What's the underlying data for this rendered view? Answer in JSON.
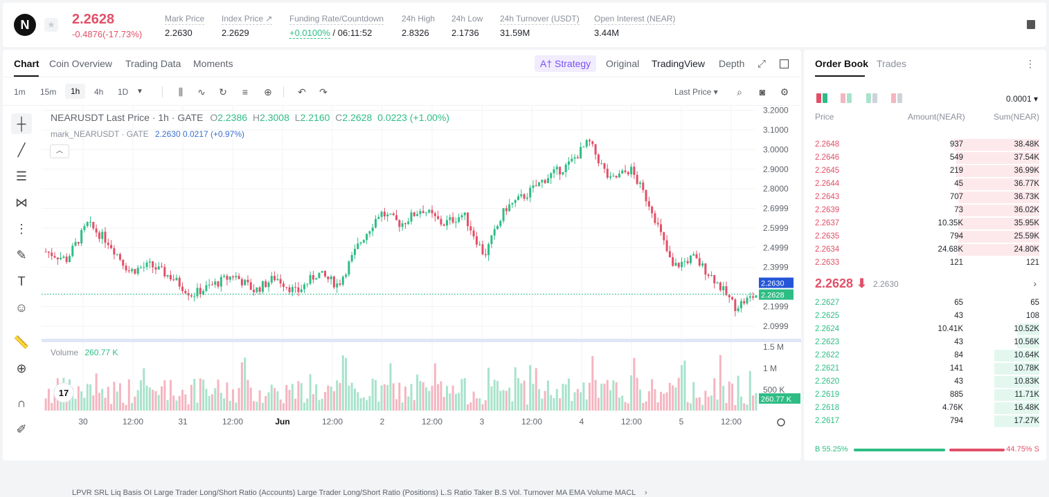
{
  "ticker": {
    "last_price": "2.2628",
    "change": "-0.4876(-17.73%)",
    "stats": [
      {
        "label": "Mark Price",
        "value": "2.2630"
      },
      {
        "label": "Index Price ↗",
        "value": "2.2629"
      },
      {
        "label": "Funding Rate/Countdown",
        "value": "+0.0100%",
        "value2": "/ 06:11:52"
      },
      {
        "label": "24h High",
        "value": "2.8326"
      },
      {
        "label": "24h Low",
        "value": "2.1736"
      },
      {
        "label": "24h Turnover (USDT)",
        "value": "31.59M"
      },
      {
        "label": "Open Interest (NEAR)",
        "value": "3.44M"
      }
    ]
  },
  "chart_tabs": {
    "chart": "Chart",
    "coin_overview": "Coin Overview",
    "trading_data": "Trading Data",
    "moments": "Moments",
    "strategy": "A† Strategy",
    "original": "Original",
    "tradingview": "TradingView",
    "depth": "Depth"
  },
  "toolbar": {
    "timeframes": [
      "1m",
      "15m",
      "1h",
      "4h",
      "1D"
    ],
    "active_timeframe": "1h",
    "price_type": "Last Price ▾"
  },
  "legend": {
    "symbol": "NEARUSDT Last Price · 1h · GATE",
    "o_label": "O",
    "o": "2.2386",
    "h_label": "H",
    "h": "2.3008",
    "l_label": "L",
    "l": "2.2160",
    "c_label": "C",
    "c": "2.2628",
    "change": "0.0223 (+1.00%)",
    "mark_line": "mark_NEARUSDT · GATE",
    "mark_value": "2.2630  0.0217 (+0.97%)",
    "volume_label": "Volume",
    "volume_value": "260.77 K"
  },
  "price_axis": [
    "3.2000",
    "3.1000",
    "3.0000",
    "2.9000",
    "2.8000",
    "2.6999",
    "2.5999",
    "2.4999",
    "2.3999",
    "2.1999",
    "2.0999"
  ],
  "price_badges": {
    "mark": "2.2630",
    "last": "2.2628",
    "volume": "260.77 K"
  },
  "volume_axis": [
    "1.5 M",
    "1 M",
    "500 K"
  ],
  "time_axis": [
    "30",
    "12:00",
    "31",
    "12:00",
    "Jun",
    "12:00",
    "2",
    "12:00",
    "3",
    "12:00",
    "4",
    "12:00",
    "5",
    "12:00"
  ],
  "indicators": "LPVR    SRL    Liq    Basis    OI    Large Trader Long/Short Ratio (Accounts)        Large Trader Long/Short Ratio (Positions)        L.S Ratio    Taker B.S Vol.    Turnover    MA    EMA    Volume    MACL",
  "chart_data": {
    "type": "candlestick",
    "symbol": "NEARUSDT",
    "interval": "1h",
    "close_path": [
      2.48,
      2.44,
      2.62,
      2.53,
      2.38,
      2.41,
      2.35,
      2.26,
      2.31,
      2.36,
      2.28,
      2.35,
      2.27,
      2.37,
      2.31,
      2.52,
      2.68,
      2.62,
      2.7,
      2.62,
      2.67,
      2.46,
      2.7,
      2.77,
      2.86,
      2.92,
      3.04,
      2.84,
      2.9,
      2.7,
      2.4,
      2.45,
      2.34,
      2.2,
      2.26
    ],
    "mark_price": 2.263,
    "last_price": 2.2628,
    "ylim": [
      2.05,
      3.22
    ],
    "x_ticks": [
      "30",
      "12:00",
      "31",
      "12:00",
      "Jun",
      "12:00",
      "2",
      "12:00",
      "3",
      "12:00",
      "4",
      "12:00",
      "5",
      "12:00"
    ]
  },
  "orderbook": {
    "tabs": [
      "Order Book",
      "Trades"
    ],
    "tick": "0.0001 ▾",
    "headers": [
      "Price",
      "Amount(NEAR)",
      "Sum(NEAR)"
    ],
    "asks": [
      {
        "price": "2.2648",
        "amount": "937",
        "sum": "38.48K",
        "depth": 0.38
      },
      {
        "price": "2.2646",
        "amount": "549",
        "sum": "37.54K",
        "depth": 0.37
      },
      {
        "price": "2.2645",
        "amount": "219",
        "sum": "36.99K",
        "depth": 0.37
      },
      {
        "price": "2.2644",
        "amount": "45",
        "sum": "36.77K",
        "depth": 0.36
      },
      {
        "price": "2.2643",
        "amount": "707",
        "sum": "36.73K",
        "depth": 0.36
      },
      {
        "price": "2.2639",
        "amount": "73",
        "sum": "36.02K",
        "depth": 0.36
      },
      {
        "price": "2.2637",
        "amount": "10.35K",
        "sum": "35.95K",
        "depth": 0.36
      },
      {
        "price": "2.2635",
        "amount": "794",
        "sum": "25.59K",
        "depth": 0.36
      },
      {
        "price": "2.2634",
        "amount": "24.68K",
        "sum": "24.80K",
        "depth": 0.36
      },
      {
        "price": "2.2633",
        "amount": "121",
        "sum": "121",
        "depth": 0
      }
    ],
    "mid_price": "2.2628 ⬇",
    "mid_mark": "2.2630",
    "bids": [
      {
        "price": "2.2627",
        "amount": "65",
        "sum": "65",
        "depth": 0
      },
      {
        "price": "2.2625",
        "amount": "43",
        "sum": "108",
        "depth": 0
      },
      {
        "price": "2.2624",
        "amount": "10.41K",
        "sum": "10.52K",
        "depth": 0.1
      },
      {
        "price": "2.2623",
        "amount": "43",
        "sum": "10.56K",
        "depth": 0.1
      },
      {
        "price": "2.2622",
        "amount": "84",
        "sum": "10.64K",
        "depth": 0.2
      },
      {
        "price": "2.2621",
        "amount": "141",
        "sum": "10.78K",
        "depth": 0.2
      },
      {
        "price": "2.2620",
        "amount": "43",
        "sum": "10.83K",
        "depth": 0.2
      },
      {
        "price": "2.2619",
        "amount": "885",
        "sum": "11.71K",
        "depth": 0.2
      },
      {
        "price": "2.2618",
        "amount": "4.76K",
        "sum": "16.48K",
        "depth": 0.2
      },
      {
        "price": "2.2617",
        "amount": "794",
        "sum": "17.27K",
        "depth": 0.2
      }
    ],
    "buy_ratio": "B 55.25%",
    "sell_ratio": "44.75% S"
  },
  "colors": {
    "up": "#2ebd85",
    "down": "#e24f67",
    "mark_blue": "#2556d8"
  }
}
